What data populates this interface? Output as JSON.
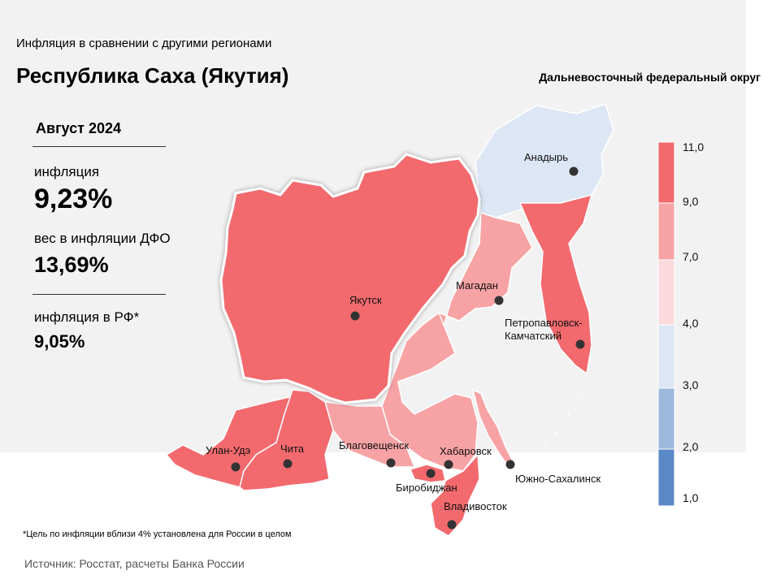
{
  "header": {
    "subtitle": "Инфляция в сравнении с другими регионами",
    "title": "Республика Саха (Якутия)",
    "district": "Дальневосточный федеральный округ"
  },
  "stats": {
    "period": "Август 2024",
    "inflation_label": "инфляция",
    "inflation_value": "9,23%",
    "weight_label": "вес в инфляции ДФО",
    "weight_value": "13,69%",
    "rf_label": "инфляция в РФ*",
    "rf_value": "9,05%"
  },
  "legend": {
    "bins": [
      {
        "from": 9.0,
        "to": 11.0,
        "color": "#f26a6e"
      },
      {
        "from": 7.0,
        "to": 9.0,
        "color": "#f7a3a5"
      },
      {
        "from": 4.0,
        "to": 7.0,
        "color": "#fadadd"
      },
      {
        "from": 3.0,
        "to": 4.0,
        "color": "#dce6f4"
      },
      {
        "from": 2.0,
        "to": 3.0,
        "color": "#9cb8db"
      },
      {
        "from": 1.0,
        "to": 2.0,
        "color": "#5b88c6"
      }
    ],
    "tick_labels": [
      "11,0",
      "9,0",
      "7,0",
      "4,0",
      "3,0",
      "2,0",
      "1,0"
    ]
  },
  "regions": {
    "yakutia": {
      "color": "#f26a6e"
    },
    "chukotka": {
      "color": "#dce6f4"
    },
    "magadan": {
      "color": "#f7a3a5"
    },
    "kamchatka": {
      "color": "#f26a6e"
    },
    "buryatia": {
      "color": "#f26a6e"
    },
    "zabaikalsky": {
      "color": "#f26a6e"
    },
    "amur": {
      "color": "#f7a3a5"
    },
    "khabarovsk": {
      "color": "#f7a3a5"
    },
    "jewish_ao": {
      "color": "#f26a6e"
    },
    "primorsky": {
      "color": "#f26a6e"
    },
    "sakhalin": {
      "color": "#f7a3a5"
    }
  },
  "cities": [
    {
      "name": "Анадырь"
    },
    {
      "name": "Магадан"
    },
    {
      "name": "Якутск"
    },
    {
      "name": "Петропавловск-"
    },
    {
      "name": "Камчатский"
    },
    {
      "name": "Улан-Удэ"
    },
    {
      "name": "Чита"
    },
    {
      "name": "Благовещенск"
    },
    {
      "name": "Хабаровск"
    },
    {
      "name": "Биробиджан"
    },
    {
      "name": "Южно-Сахалинск"
    },
    {
      "name": "Владивосток"
    }
  ],
  "footnote": "*Цель по инфляции вблизи 4% установлена для России в целом",
  "source": "Источник: Росстат, расчеты Банка России"
}
